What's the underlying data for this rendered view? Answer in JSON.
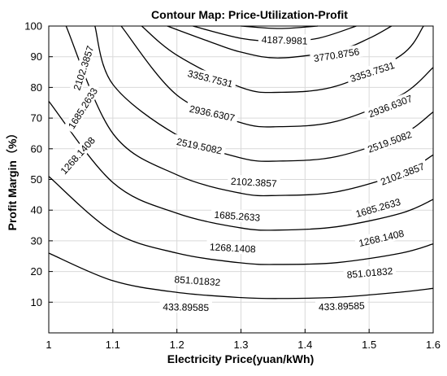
{
  "chart_data": {
    "type": "contour",
    "title": "Contour Map: Price-Utilization-Profit",
    "xlabel": "Electricity Price(yuan/kWh)",
    "ylabel": "Profit Margin（%）",
    "xlim": [
      1,
      1.6
    ],
    "ylim": [
      0,
      100
    ],
    "xticks": [
      "1",
      "1.1",
      "1.2",
      "1.3",
      "1.4",
      "1.5",
      "1.6"
    ],
    "yticks": [
      "10",
      "20",
      "30",
      "40",
      "50",
      "60",
      "70",
      "80",
      "90",
      "100"
    ],
    "grid": true,
    "levels": [
      {
        "value": 433.89585,
        "label": "433.89585",
        "points": [
          [
            1.0,
            26
          ],
          [
            1.1,
            17
          ],
          [
            1.2,
            13.2
          ],
          [
            1.3,
            11.5
          ],
          [
            1.36,
            11.2
          ],
          [
            1.45,
            11.6
          ],
          [
            1.55,
            13.3
          ],
          [
            1.6,
            14.5
          ]
        ]
      },
      {
        "value": 851.01832,
        "label": "851.01832",
        "points": [
          [
            1.0,
            51
          ],
          [
            1.1,
            33
          ],
          [
            1.2,
            26
          ],
          [
            1.3,
            22.8
          ],
          [
            1.36,
            22.3
          ],
          [
            1.45,
            22.9
          ],
          [
            1.55,
            26
          ],
          [
            1.6,
            29
          ]
        ]
      },
      {
        "value": 1268.1408,
        "label": "1268.1408",
        "points": [
          [
            1.0,
            75.5
          ],
          [
            1.1,
            49
          ],
          [
            1.2,
            39
          ],
          [
            1.3,
            34.2
          ],
          [
            1.36,
            33.5
          ],
          [
            1.45,
            34.6
          ],
          [
            1.55,
            39
          ],
          [
            1.6,
            43.5
          ]
        ]
      },
      {
        "value": 1685.2633,
        "label": "1685.2633",
        "points": [
          [
            1.027,
            100
          ],
          [
            1.1,
            65
          ],
          [
            1.2,
            51.5
          ],
          [
            1.3,
            45.5
          ],
          [
            1.36,
            44.8
          ],
          [
            1.45,
            46
          ],
          [
            1.55,
            52
          ],
          [
            1.6,
            58
          ]
        ]
      },
      {
        "value": 2102.3857,
        "label": "2102.3857",
        "points": [
          [
            1.072,
            100
          ],
          [
            1.1,
            81
          ],
          [
            1.2,
            64.5
          ],
          [
            1.3,
            57
          ],
          [
            1.36,
            56
          ],
          [
            1.45,
            57.5
          ],
          [
            1.55,
            64.5
          ],
          [
            1.6,
            72
          ]
        ]
      },
      {
        "value": 2519.5082,
        "label": "2519.5082",
        "points": [
          [
            1.113,
            100
          ],
          [
            1.2,
            77.5
          ],
          [
            1.3,
            68.5
          ],
          [
            1.36,
            67.2
          ],
          [
            1.45,
            69
          ],
          [
            1.55,
            77.5
          ],
          [
            1.6,
            86.5
          ]
        ]
      },
      {
        "value": 2936.6307,
        "label": "2936.6307",
        "points": [
          [
            1.145,
            100
          ],
          [
            1.2,
            90.5
          ],
          [
            1.3,
            80
          ],
          [
            1.36,
            78.4
          ],
          [
            1.45,
            80.5
          ],
          [
            1.55,
            90.5
          ],
          [
            1.585,
            100
          ]
        ]
      },
      {
        "value": 3353.7531,
        "label": "3353.7531",
        "points": [
          [
            1.185,
            100
          ],
          [
            1.25,
            95
          ],
          [
            1.3,
            91.5
          ],
          [
            1.36,
            89.6
          ],
          [
            1.45,
            92
          ],
          [
            1.5,
            96
          ],
          [
            1.535,
            100
          ]
        ]
      },
      {
        "value": 3770.8756,
        "label": "3770.8756",
        "points": [
          [
            1.225,
            100
          ],
          [
            1.3,
            96
          ],
          [
            1.36,
            95
          ],
          [
            1.42,
            96
          ],
          [
            1.48,
            100
          ]
        ]
      },
      {
        "value": 4187.9981,
        "label": "4187.9981",
        "points": [
          [
            1.3,
            100
          ],
          [
            1.36,
            99.2
          ],
          [
            1.42,
            100
          ]
        ]
      }
    ],
    "labels": [
      {
        "text": "4187.9981",
        "x": 1.368,
        "y": 95.4,
        "angle": 2
      },
      {
        "text": "3770.8756",
        "x": 1.449,
        "y": 90.6,
        "angle": -9
      },
      {
        "text": "3353.7531",
        "x": 1.505,
        "y": 85.1,
        "angle": -18
      },
      {
        "text": "3353.7531",
        "x": 1.252,
        "y": 82.9,
        "angle": 14
      },
      {
        "text": "2936.6307",
        "x": 1.533,
        "y": 73.9,
        "angle": -21
      },
      {
        "text": "2936.6307",
        "x": 1.255,
        "y": 71.6,
        "angle": 12
      },
      {
        "text": "2519.5082",
        "x": 1.532,
        "y": 62.3,
        "angle": -20
      },
      {
        "text": "2519.5082",
        "x": 1.235,
        "y": 60.9,
        "angle": 12
      },
      {
        "text": "2102.3857",
        "x": 1.552,
        "y": 51.8,
        "angle": -21
      },
      {
        "text": "2102.3857",
        "x": 1.32,
        "y": 49.1,
        "angle": 3
      },
      {
        "text": "2102.3857",
        "x": 1.054,
        "y": 86.3,
        "angle": -72
      },
      {
        "text": "1685.2633",
        "x": 1.514,
        "y": 40.8,
        "angle": -16
      },
      {
        "text": "1685.2633",
        "x": 1.294,
        "y": 38.1,
        "angle": 4
      },
      {
        "text": "1685.2633",
        "x": 1.053,
        "y": 73.2,
        "angle": -58
      },
      {
        "text": "1268.1408",
        "x": 1.519,
        "y": 30.9,
        "angle": -13
      },
      {
        "text": "1268.1408",
        "x": 1.287,
        "y": 27.7,
        "angle": 3
      },
      {
        "text": "1268.1408",
        "x": 1.045,
        "y": 57.8,
        "angle": -48
      },
      {
        "text": "851.01832",
        "x": 1.501,
        "y": 19.6,
        "angle": -5
      },
      {
        "text": "851.01832",
        "x": 1.232,
        "y": 17.0,
        "angle": 4
      },
      {
        "text": "433.89585",
        "x": 1.457,
        "y": 8.7,
        "angle": -2
      },
      {
        "text": "433.89585",
        "x": 1.214,
        "y": 8.4,
        "angle": 1
      }
    ]
  }
}
